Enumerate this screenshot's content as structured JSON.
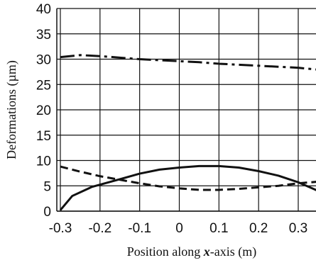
{
  "chart_data": {
    "type": "line",
    "xlabel_parts": [
      "Position along ",
      "x",
      "-axis (m)"
    ],
    "ylabel": "Deformations (µm)",
    "xlim": [
      -0.3,
      0.38
    ],
    "ylim": [
      0,
      40
    ],
    "x_ticks": [
      -0.3,
      -0.2,
      -0.1,
      0,
      0.1,
      0.2,
      0.3
    ],
    "x_tick_labels": [
      "-0.3",
      "-0.2",
      "-0.1",
      "0",
      "0.1",
      "0.2",
      "0.3"
    ],
    "y_ticks": [
      0,
      5,
      10,
      15,
      20,
      25,
      30,
      35,
      40
    ],
    "y_tick_labels": [
      "0",
      "5",
      "10",
      "15",
      "20",
      "25",
      "30",
      "35",
      "40"
    ],
    "grid": true,
    "series": [
      {
        "line_style": "dash-dot",
        "color": "#111111",
        "points": [
          [
            -0.3,
            30.4
          ],
          [
            -0.25,
            30.8
          ],
          [
            -0.2,
            30.6
          ],
          [
            -0.15,
            30.3
          ],
          [
            -0.1,
            30.0
          ],
          [
            -0.05,
            29.8
          ],
          [
            0.0,
            29.6
          ],
          [
            0.05,
            29.4
          ],
          [
            0.1,
            29.1
          ],
          [
            0.15,
            28.9
          ],
          [
            0.2,
            28.7
          ],
          [
            0.25,
            28.5
          ],
          [
            0.3,
            28.3
          ],
          [
            0.38,
            27.7
          ]
        ]
      },
      {
        "line_style": "dashed",
        "color": "#111111",
        "points": [
          [
            -0.3,
            8.8
          ],
          [
            -0.25,
            7.8
          ],
          [
            -0.2,
            6.9
          ],
          [
            -0.15,
            6.2
          ],
          [
            -0.1,
            5.5
          ],
          [
            -0.05,
            4.9
          ],
          [
            0.0,
            4.5
          ],
          [
            0.05,
            4.2
          ],
          [
            0.1,
            4.2
          ],
          [
            0.15,
            4.4
          ],
          [
            0.2,
            4.7
          ],
          [
            0.25,
            5.0
          ],
          [
            0.3,
            5.5
          ],
          [
            0.38,
            6.0
          ]
        ]
      },
      {
        "line_style": "solid",
        "color": "#111111",
        "points": [
          [
            -0.3,
            0.2
          ],
          [
            -0.27,
            3.0
          ],
          [
            -0.22,
            4.8
          ],
          [
            -0.15,
            6.3
          ],
          [
            -0.1,
            7.4
          ],
          [
            -0.05,
            8.2
          ],
          [
            0.0,
            8.6
          ],
          [
            0.05,
            8.9
          ],
          [
            0.1,
            8.9
          ],
          [
            0.15,
            8.6
          ],
          [
            0.2,
            7.9
          ],
          [
            0.25,
            7.0
          ],
          [
            0.3,
            5.7
          ],
          [
            0.35,
            4.0
          ],
          [
            0.38,
            2.6
          ]
        ]
      }
    ]
  }
}
